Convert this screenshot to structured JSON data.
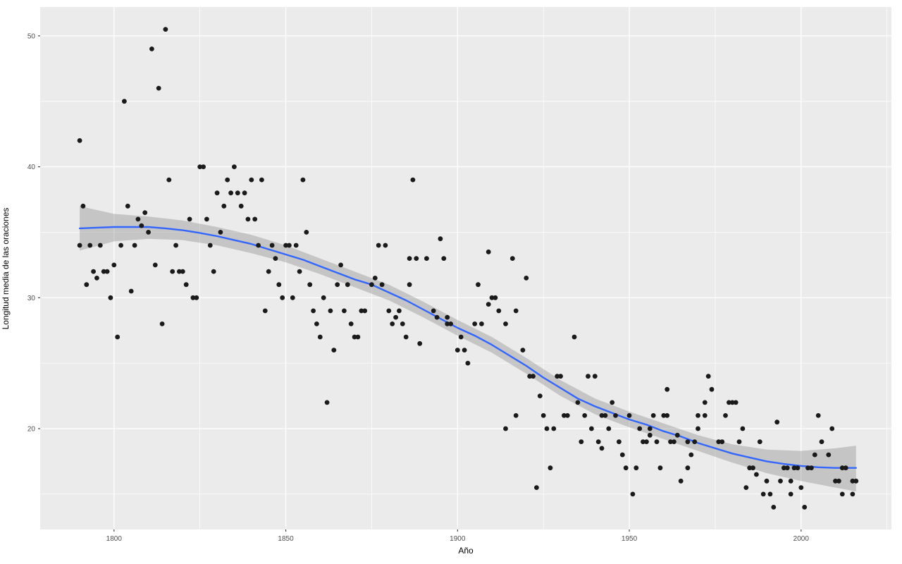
{
  "chart_data": {
    "type": "scatter",
    "title": "",
    "xlabel": "Año",
    "ylabel": "Longitud media de las oraciones",
    "x_range": [
      1778.5,
      2026.3
    ],
    "y_range": [
      12.3,
      52.2
    ],
    "x_ticks": [
      1800,
      1850,
      1900,
      1950,
      2000
    ],
    "y_ticks": [
      20,
      30,
      40,
      50
    ],
    "x_minor": [
      1825,
      1875,
      1925,
      1975,
      2025
    ],
    "y_minor": [
      15,
      25,
      35,
      45
    ],
    "grid": "on",
    "legend": "none",
    "style": "ggplot2",
    "colors": {
      "panel_background": "#EBEBEB",
      "grid_major": "#FFFFFF",
      "grid_minor": "#FFFFFF",
      "point": "#1A1A1A",
      "trend_line": "#3366FF",
      "confidence_band": "rgba(125,125,125,0.35)",
      "axis_text": "#4D4D4D",
      "axis_title": "#000000",
      "tick_mark": "#333333"
    },
    "points": [
      [
        1790,
        42
      ],
      [
        1790,
        34
      ],
      [
        1791,
        37
      ],
      [
        1792,
        31
      ],
      [
        1793,
        34
      ],
      [
        1794,
        32
      ],
      [
        1795,
        31.5
      ],
      [
        1796,
        34
      ],
      [
        1797,
        32
      ],
      [
        1798,
        32
      ],
      [
        1799,
        30
      ],
      [
        1800,
        32.5
      ],
      [
        1801,
        27
      ],
      [
        1802,
        34
      ],
      [
        1803,
        45
      ],
      [
        1804,
        37
      ],
      [
        1805,
        30.5
      ],
      [
        1806,
        34
      ],
      [
        1807,
        36
      ],
      [
        1808,
        35.5
      ],
      [
        1809,
        36.5
      ],
      [
        1810,
        35
      ],
      [
        1811,
        49
      ],
      [
        1812,
        32.5
      ],
      [
        1813,
        46
      ],
      [
        1814,
        28
      ],
      [
        1815,
        50.5
      ],
      [
        1816,
        39
      ],
      [
        1817,
        32
      ],
      [
        1818,
        34
      ],
      [
        1819,
        32
      ],
      [
        1820,
        32
      ],
      [
        1821,
        31
      ],
      [
        1822,
        36
      ],
      [
        1823,
        30
      ],
      [
        1824,
        30
      ],
      [
        1825,
        40
      ],
      [
        1826,
        40
      ],
      [
        1827,
        36
      ],
      [
        1828,
        34
      ],
      [
        1829,
        32
      ],
      [
        1830,
        38
      ],
      [
        1831,
        35
      ],
      [
        1832,
        37
      ],
      [
        1833,
        39
      ],
      [
        1834,
        38
      ],
      [
        1835,
        40
      ],
      [
        1836,
        38
      ],
      [
        1837,
        37
      ],
      [
        1838,
        38
      ],
      [
        1839,
        36
      ],
      [
        1840,
        39
      ],
      [
        1841,
        36
      ],
      [
        1842,
        34
      ],
      [
        1843,
        39
      ],
      [
        1844,
        29
      ],
      [
        1845,
        32
      ],
      [
        1846,
        34
      ],
      [
        1847,
        33
      ],
      [
        1848,
        31
      ],
      [
        1849,
        30
      ],
      [
        1850,
        34
      ],
      [
        1851,
        34
      ],
      [
        1852,
        30
      ],
      [
        1853,
        34
      ],
      [
        1854,
        32
      ],
      [
        1855,
        39
      ],
      [
        1856,
        35
      ],
      [
        1857,
        31
      ],
      [
        1858,
        29
      ],
      [
        1859,
        28
      ],
      [
        1860,
        27
      ],
      [
        1861,
        30
      ],
      [
        1862,
        22
      ],
      [
        1863,
        29
      ],
      [
        1864,
        26
      ],
      [
        1865,
        31
      ],
      [
        1866,
        32.5
      ],
      [
        1867,
        29
      ],
      [
        1868,
        31
      ],
      [
        1869,
        28
      ],
      [
        1870,
        27
      ],
      [
        1871,
        27
      ],
      [
        1872,
        29
      ],
      [
        1873,
        29
      ],
      [
        1875,
        31
      ],
      [
        1876,
        31.5
      ],
      [
        1877,
        34
      ],
      [
        1878,
        31
      ],
      [
        1879,
        34
      ],
      [
        1880,
        29
      ],
      [
        1881,
        28
      ],
      [
        1882,
        28.5
      ],
      [
        1883,
        29
      ],
      [
        1884,
        28
      ],
      [
        1885,
        27
      ],
      [
        1886,
        31
      ],
      [
        1886,
        33
      ],
      [
        1887,
        39
      ],
      [
        1888,
        33
      ],
      [
        1889,
        26.5
      ],
      [
        1891,
        33
      ],
      [
        1893,
        29
      ],
      [
        1894,
        28.5
      ],
      [
        1895,
        34.5
      ],
      [
        1896,
        33
      ],
      [
        1897,
        28.5
      ],
      [
        1897,
        28
      ],
      [
        1898,
        28
      ],
      [
        1900,
        26
      ],
      [
        1901,
        27
      ],
      [
        1902,
        26
      ],
      [
        1903,
        25
      ],
      [
        1905,
        28
      ],
      [
        1906,
        31
      ],
      [
        1907,
        28
      ],
      [
        1909,
        33.5
      ],
      [
        1909,
        29.5
      ],
      [
        1910,
        30
      ],
      [
        1911,
        30
      ],
      [
        1912,
        29
      ],
      [
        1914,
        28
      ],
      [
        1914,
        20
      ],
      [
        1916,
        33
      ],
      [
        1917,
        29
      ],
      [
        1917,
        21
      ],
      [
        1919,
        26
      ],
      [
        1920,
        31.5
      ],
      [
        1921,
        24
      ],
      [
        1922,
        24
      ],
      [
        1923,
        15.5
      ],
      [
        1924,
        22.5
      ],
      [
        1925,
        21
      ],
      [
        1926,
        20
      ],
      [
        1927,
        17
      ],
      [
        1928,
        20
      ],
      [
        1929,
        24
      ],
      [
        1930,
        24
      ],
      [
        1931,
        21
      ],
      [
        1932,
        21
      ],
      [
        1934,
        27
      ],
      [
        1935,
        22
      ],
      [
        1936,
        19
      ],
      [
        1937,
        21
      ],
      [
        1938,
        24
      ],
      [
        1939,
        20
      ],
      [
        1940,
        24
      ],
      [
        1941,
        19
      ],
      [
        1942,
        18.5
      ],
      [
        1942,
        21
      ],
      [
        1943,
        21
      ],
      [
        1944,
        20
      ],
      [
        1945,
        22
      ],
      [
        1946,
        21
      ],
      [
        1947,
        19
      ],
      [
        1948,
        18
      ],
      [
        1949,
        17
      ],
      [
        1950,
        21
      ],
      [
        1951,
        15
      ],
      [
        1952,
        17
      ],
      [
        1953,
        20
      ],
      [
        1954,
        19
      ],
      [
        1955,
        19
      ],
      [
        1956,
        19.5
      ],
      [
        1956,
        20
      ],
      [
        1957,
        21
      ],
      [
        1958,
        19
      ],
      [
        1959,
        17
      ],
      [
        1960,
        21
      ],
      [
        1961,
        21
      ],
      [
        1961,
        23
      ],
      [
        1962,
        19
      ],
      [
        1963,
        19
      ],
      [
        1964,
        19.5
      ],
      [
        1965,
        16
      ],
      [
        1967,
        19
      ],
      [
        1967,
        17
      ],
      [
        1968,
        18
      ],
      [
        1969,
        19
      ],
      [
        1970,
        20
      ],
      [
        1970,
        21
      ],
      [
        1972,
        21
      ],
      [
        1972,
        22
      ],
      [
        1973,
        24
      ],
      [
        1974,
        23
      ],
      [
        1976,
        19
      ],
      [
        1977,
        19
      ],
      [
        1978,
        21
      ],
      [
        1979,
        22
      ],
      [
        1980,
        22
      ],
      [
        1981,
        22
      ],
      [
        1982,
        19
      ],
      [
        1983,
        20
      ],
      [
        1984,
        15.5
      ],
      [
        1985,
        17
      ],
      [
        1986,
        17
      ],
      [
        1987,
        16.5
      ],
      [
        1988,
        19
      ],
      [
        1989,
        15
      ],
      [
        1990,
        16
      ],
      [
        1991,
        15
      ],
      [
        1992,
        14
      ],
      [
        1993,
        20.5
      ],
      [
        1994,
        16
      ],
      [
        1995,
        17
      ],
      [
        1996,
        17
      ],
      [
        1997,
        15
      ],
      [
        1997,
        16
      ],
      [
        1998,
        17
      ],
      [
        1999,
        17
      ],
      [
        2000,
        15.5
      ],
      [
        2001,
        14
      ],
      [
        2002,
        17
      ],
      [
        2003,
        17
      ],
      [
        2004,
        18
      ],
      [
        2005,
        21
      ],
      [
        2006,
        19
      ],
      [
        2008,
        18
      ],
      [
        2009,
        20
      ],
      [
        2010,
        16
      ],
      [
        2011,
        16
      ],
      [
        2012,
        15
      ],
      [
        2012,
        17
      ],
      [
        2013,
        17
      ],
      [
        2015,
        16
      ],
      [
        2015,
        15
      ],
      [
        2016,
        16
      ]
    ],
    "smooth_line": [
      [
        1790,
        35.3
      ],
      [
        1795,
        35.35
      ],
      [
        1800,
        35.4
      ],
      [
        1805,
        35.4
      ],
      [
        1810,
        35.4
      ],
      [
        1815,
        35.3
      ],
      [
        1820,
        35.15
      ],
      [
        1825,
        34.95
      ],
      [
        1830,
        34.7
      ],
      [
        1835,
        34.4
      ],
      [
        1840,
        34.1
      ],
      [
        1845,
        33.7
      ],
      [
        1850,
        33.3
      ],
      [
        1855,
        32.9
      ],
      [
        1860,
        32.4
      ],
      [
        1865,
        31.9
      ],
      [
        1870,
        31.4
      ],
      [
        1875,
        31.0
      ],
      [
        1880,
        30.4
      ],
      [
        1885,
        29.8
      ],
      [
        1890,
        29.1
      ],
      [
        1895,
        28.4
      ],
      [
        1900,
        27.7
      ],
      [
        1905,
        27.1
      ],
      [
        1910,
        26.4
      ],
      [
        1915,
        25.6
      ],
      [
        1920,
        24.8
      ],
      [
        1925,
        23.9
      ],
      [
        1930,
        23.1
      ],
      [
        1935,
        22.3
      ],
      [
        1940,
        21.7
      ],
      [
        1945,
        21.2
      ],
      [
        1950,
        20.7
      ],
      [
        1955,
        20.3
      ],
      [
        1960,
        19.8
      ],
      [
        1965,
        19.4
      ],
      [
        1970,
        18.9
      ],
      [
        1975,
        18.5
      ],
      [
        1980,
        18.1
      ],
      [
        1985,
        17.8
      ],
      [
        1990,
        17.5
      ],
      [
        1995,
        17.3
      ],
      [
        2000,
        17.15
      ],
      [
        2005,
        17.05
      ],
      [
        2010,
        17.0
      ],
      [
        2016,
        17.0
      ]
    ],
    "confidence_band": [
      [
        1790,
        33.6,
        37.0
      ],
      [
        1800,
        34.3,
        36.4
      ],
      [
        1810,
        34.5,
        36.2
      ],
      [
        1820,
        34.4,
        35.9
      ],
      [
        1830,
        34.0,
        35.4
      ],
      [
        1840,
        33.4,
        34.8
      ],
      [
        1850,
        32.7,
        34.0
      ],
      [
        1860,
        31.8,
        33.0
      ],
      [
        1870,
        30.8,
        32.0
      ],
      [
        1880,
        29.8,
        31.0
      ],
      [
        1890,
        28.5,
        29.7
      ],
      [
        1900,
        27.1,
        28.3
      ],
      [
        1910,
        25.8,
        27.0
      ],
      [
        1920,
        24.2,
        25.4
      ],
      [
        1930,
        22.5,
        23.7
      ],
      [
        1940,
        21.1,
        22.3
      ],
      [
        1950,
        20.1,
        21.3
      ],
      [
        1960,
        19.2,
        20.4
      ],
      [
        1970,
        18.3,
        19.5
      ],
      [
        1980,
        17.4,
        18.8
      ],
      [
        1990,
        16.6,
        18.4
      ],
      [
        2000,
        16.0,
        18.3
      ],
      [
        2010,
        15.5,
        18.5
      ],
      [
        2016,
        15.2,
        18.7
      ]
    ]
  }
}
